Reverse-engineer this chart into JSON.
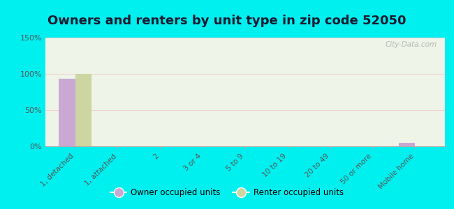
{
  "title": "Owners and renters by unit type in zip code 52050",
  "categories": [
    "1, detached",
    "1, attached",
    "2",
    "3 or 4",
    "5 to 9",
    "10 to 19",
    "20 to 49",
    "50 or more",
    "Mobile home"
  ],
  "owner_values": [
    93,
    0,
    0,
    0,
    0,
    0,
    0,
    0,
    5
  ],
  "renter_values": [
    100,
    0,
    0,
    0,
    0,
    0,
    0,
    0,
    0
  ],
  "owner_color": "#c9a8d4",
  "renter_color": "#cdd6a0",
  "ylim": [
    0,
    150
  ],
  "yticks": [
    0,
    50,
    100,
    150
  ],
  "ytick_labels": [
    "0%",
    "50%",
    "100%",
    "150%"
  ],
  "background_color": "#00f0f0",
  "plot_bg_color": "#eef4e8",
  "watermark": "City-Data.com",
  "legend_owner": "Owner occupied units",
  "legend_renter": "Renter occupied units",
  "bar_width": 0.38,
  "title_fontsize": 13,
  "title_color": "#1a1a2e"
}
